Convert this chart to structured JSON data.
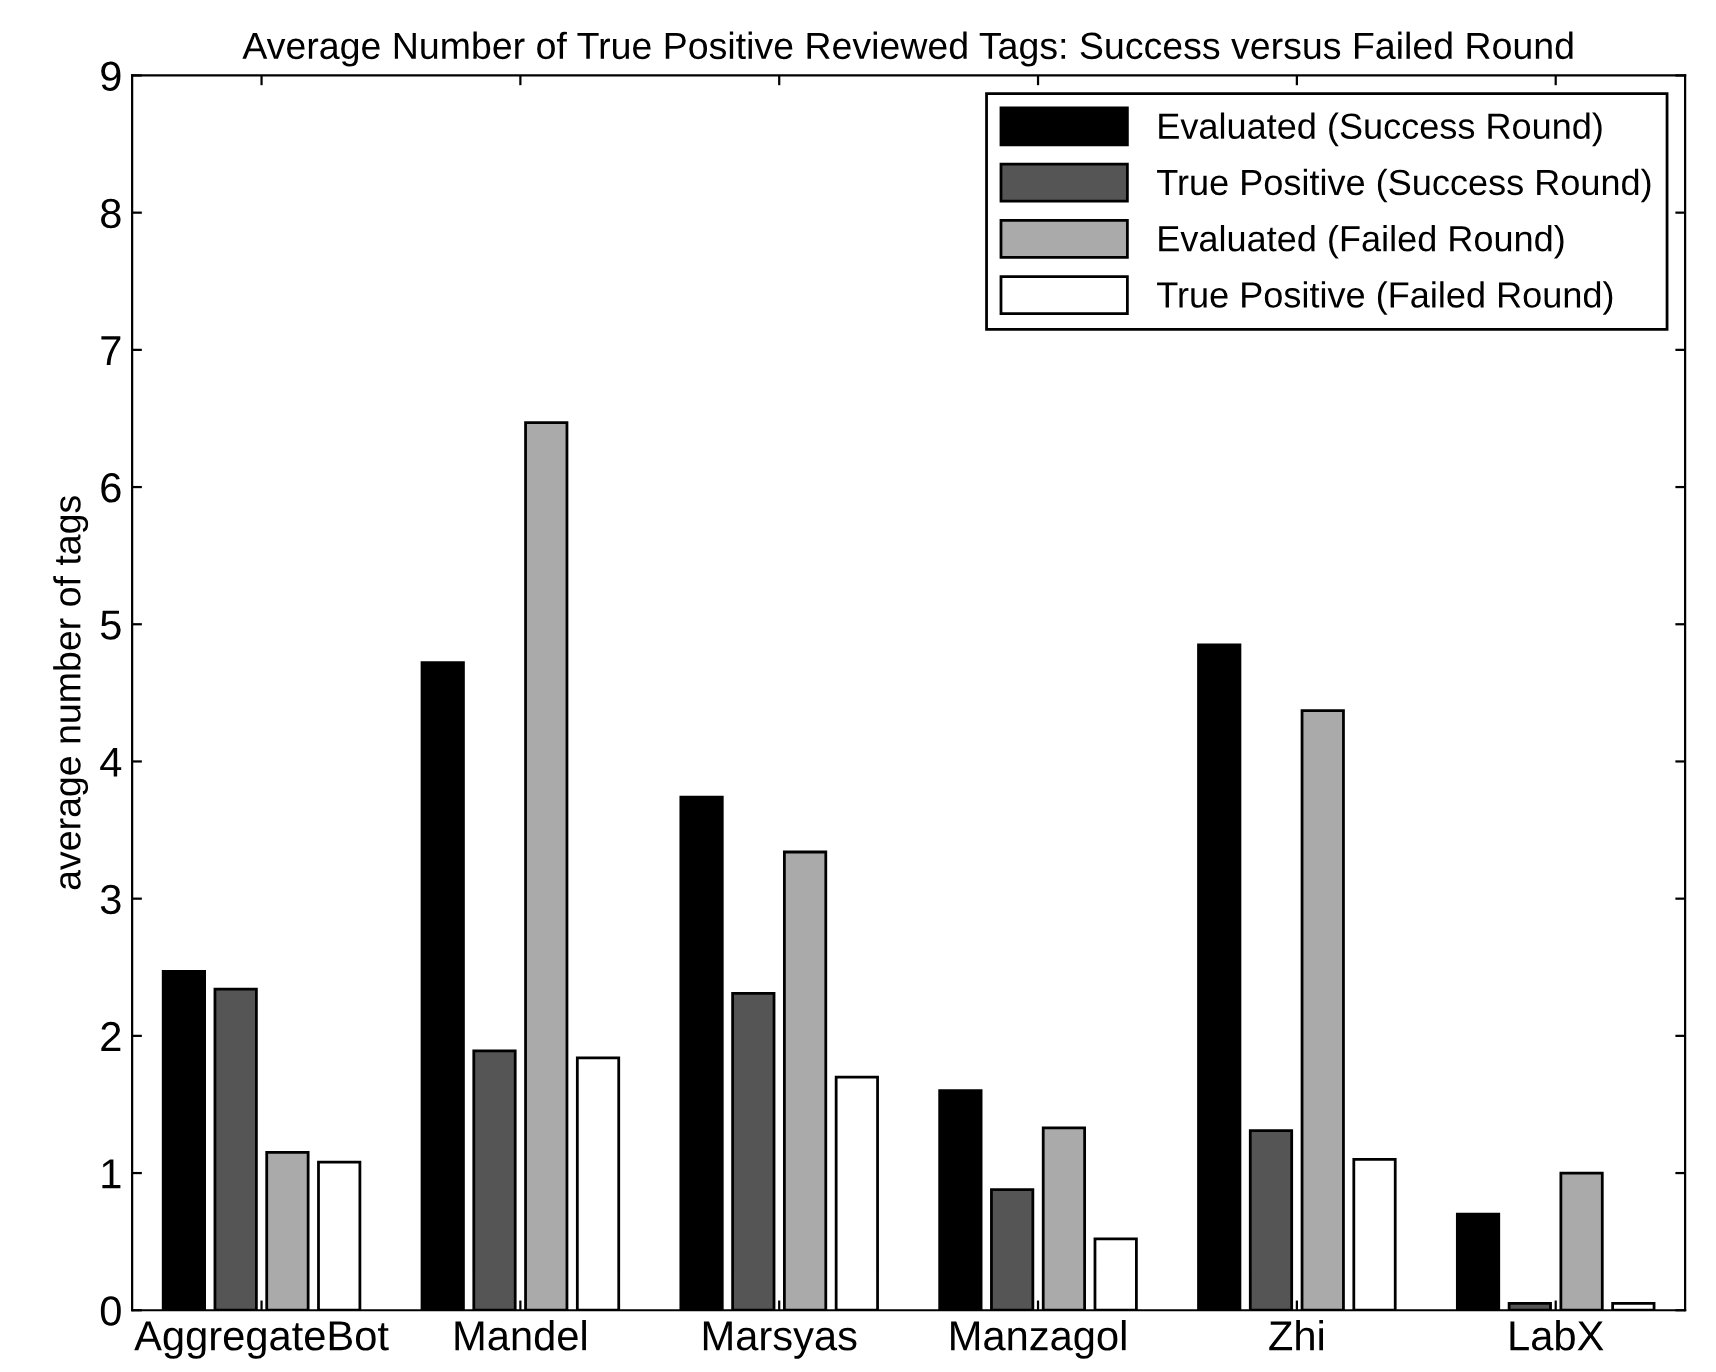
{
  "chart_data": {
    "type": "bar",
    "title": "Average Number of True Positive Reviewed Tags: Success versus Failed Round",
    "ylabel": "average number of tags",
    "categories": [
      "AggregateBot",
      "Mandel",
      "Marsyas",
      "Manzagol",
      "Zhi",
      "LabX"
    ],
    "series": [
      {
        "name": "Evaluated (Success Round)",
        "color": "#000000",
        "values": [
          2.47,
          4.72,
          3.74,
          1.6,
          4.85,
          0.7
        ]
      },
      {
        "name": "True Positive (Success Round)",
        "color": "#555555",
        "values": [
          2.34,
          1.89,
          2.31,
          0.88,
          1.31,
          0.05
        ]
      },
      {
        "name": "Evaluated (Failed Round)",
        "color": "#aaaaaa",
        "values": [
          1.15,
          6.47,
          3.34,
          1.33,
          4.37,
          1.0
        ]
      },
      {
        "name": "True Positive (Failed Round)",
        "color": "#ffffff",
        "values": [
          1.08,
          1.84,
          1.7,
          0.52,
          1.1,
          0.05
        ]
      }
    ],
    "ylim": [
      0,
      9
    ],
    "yticks": [
      0,
      1,
      2,
      3,
      4,
      5,
      6,
      7,
      8,
      9
    ],
    "grid": false,
    "legend": "top right"
  }
}
